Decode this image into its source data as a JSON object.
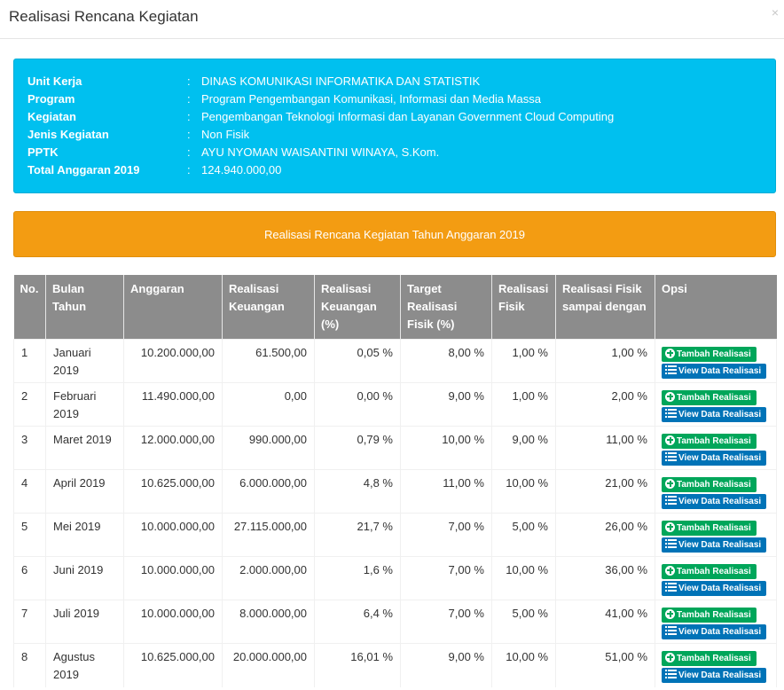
{
  "modal": {
    "title": "Realisasi Rencana Kegiatan",
    "close_label": "×"
  },
  "info": {
    "separator": ":",
    "rows": [
      {
        "label": "Unit Kerja",
        "value": "DINAS KOMUNIKASI INFORMATIKA DAN STATISTIK"
      },
      {
        "label": "Program",
        "value": "Program Pengembangan Komunikasi, Informasi dan Media Massa"
      },
      {
        "label": "Kegiatan",
        "value": "Pengembangan Teknologi Informasi dan Layanan Government Cloud Computing"
      },
      {
        "label": "Jenis Kegiatan",
        "value": "Non Fisik"
      },
      {
        "label": "PPTK",
        "value": "AYU NYOMAN WAISANTINI WINAYA, S.Kom."
      },
      {
        "label": "Total Anggaran 2019",
        "value": "124.940.000,00"
      }
    ]
  },
  "banner": {
    "text": "Realisasi Rencana Kegiatan Tahun Anggaran 2019"
  },
  "table": {
    "headers": [
      "No.",
      "Bulan Tahun",
      "Anggaran",
      "Realisasi Keuangan",
      "Realisasi Keuangan (%)",
      "Target Realisasi Fisik (%)",
      "Realisasi Fisik",
      "Realisasi Fisik sampai dengan",
      "Opsi"
    ],
    "add_button_label": "Tambah Realisasi",
    "view_button_label": "View Data Realisasi",
    "rows": [
      {
        "no": "1",
        "bulan": "Januari 2019",
        "anggaran": "10.200.000,00",
        "realisasi_keuangan": "61.500,00",
        "realisasi_keuangan_pct": "0,05 %",
        "target_fisik": "8,00 %",
        "realisasi_fisik": "1,00 %",
        "fisik_sd": "1,00 %"
      },
      {
        "no": "2",
        "bulan": "Februari 2019",
        "anggaran": "11.490.000,00",
        "realisasi_keuangan": "0,00",
        "realisasi_keuangan_pct": "0,00 %",
        "target_fisik": "9,00 %",
        "realisasi_fisik": "1,00 %",
        "fisik_sd": "2,00 %"
      },
      {
        "no": "3",
        "bulan": "Maret 2019",
        "anggaran": "12.000.000,00",
        "realisasi_keuangan": "990.000,00",
        "realisasi_keuangan_pct": "0,79 %",
        "target_fisik": "10,00 %",
        "realisasi_fisik": "9,00 %",
        "fisik_sd": "11,00 %"
      },
      {
        "no": "4",
        "bulan": "April 2019",
        "anggaran": "10.625.000,00",
        "realisasi_keuangan": "6.000.000,00",
        "realisasi_keuangan_pct": "4,8 %",
        "target_fisik": "11,00 %",
        "realisasi_fisik": "10,00 %",
        "fisik_sd": "21,00 %"
      },
      {
        "no": "5",
        "bulan": "Mei 2019",
        "anggaran": "10.000.000,00",
        "realisasi_keuangan": "27.115.000,00",
        "realisasi_keuangan_pct": "21,7 %",
        "target_fisik": "7,00 %",
        "realisasi_fisik": "5,00 %",
        "fisik_sd": "26,00 %"
      },
      {
        "no": "6",
        "bulan": "Juni 2019",
        "anggaran": "10.000.000,00",
        "realisasi_keuangan": "2.000.000,00",
        "realisasi_keuangan_pct": "1,6 %",
        "target_fisik": "7,00 %",
        "realisasi_fisik": "10,00 %",
        "fisik_sd": "36,00 %"
      },
      {
        "no": "7",
        "bulan": "Juli 2019",
        "anggaran": "10.000.000,00",
        "realisasi_keuangan": "8.000.000,00",
        "realisasi_keuangan_pct": "6,4 %",
        "target_fisik": "7,00 %",
        "realisasi_fisik": "5,00 %",
        "fisik_sd": "41,00 %"
      },
      {
        "no": "8",
        "bulan": "Agustus 2019",
        "anggaran": "10.625.000,00",
        "realisasi_keuangan": "20.000.000,00",
        "realisasi_keuangan_pct": "16,01 %",
        "target_fisik": "9,00 %",
        "realisasi_fisik": "10,00 %",
        "fisik_sd": "51,00 %"
      }
    ]
  },
  "colors": {
    "info_bg": "#00c0ef",
    "banner_bg": "#f39c12",
    "header_bg": "#8c8c8c",
    "add_button": "#00a65a",
    "view_button": "#0073b7"
  }
}
